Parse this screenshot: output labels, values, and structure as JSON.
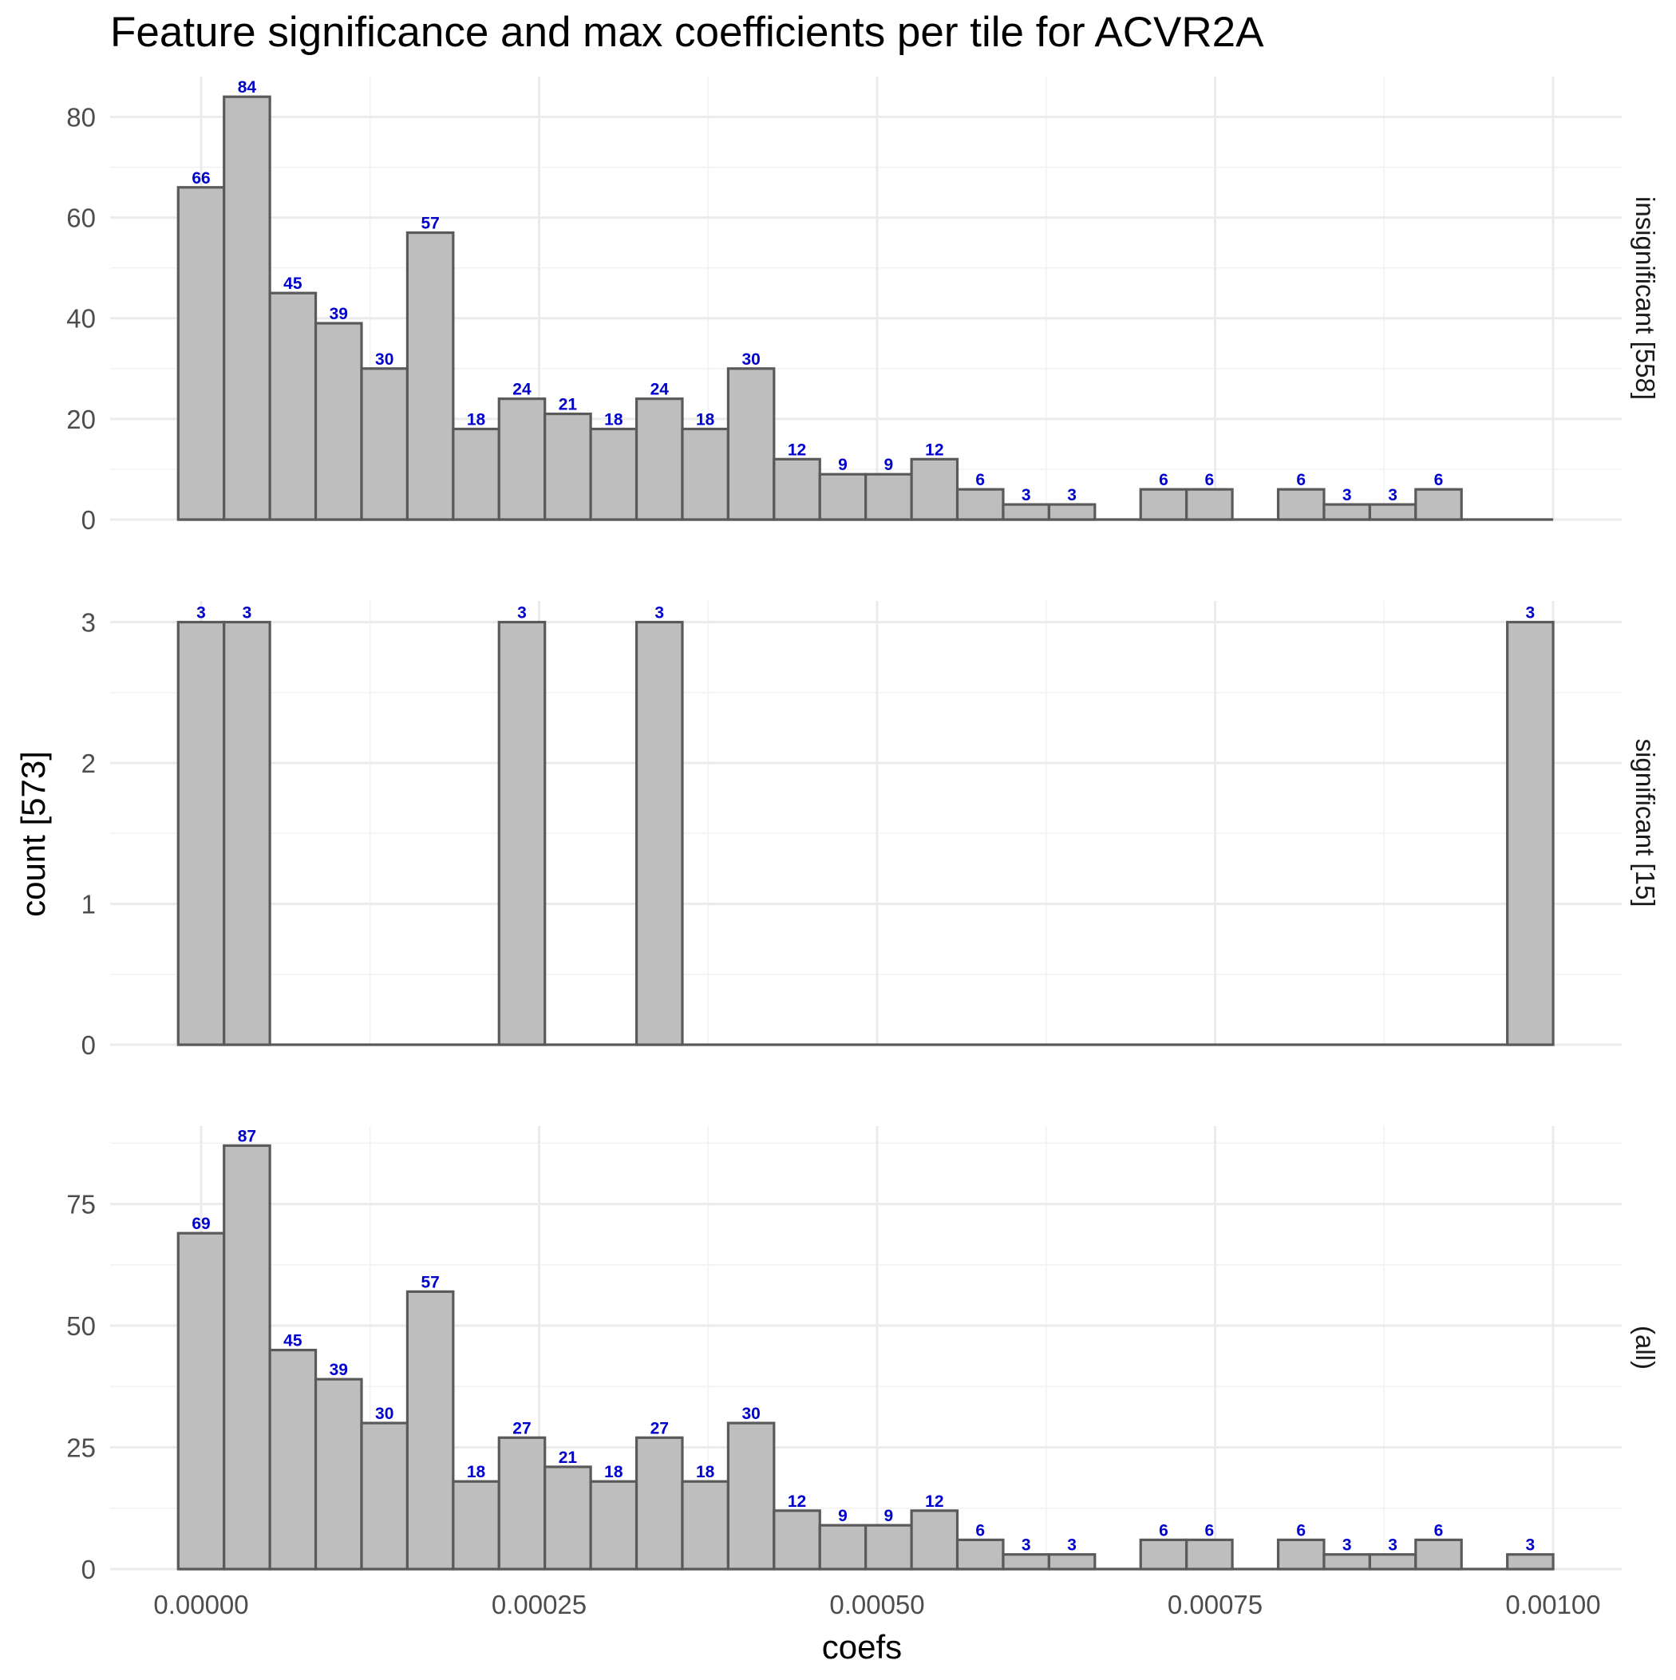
{
  "chart_data": {
    "type": "bar",
    "title": "Feature significance and max coefficients per tile for ACVR2A",
    "xlabel": "coefs",
    "ylabel": "count [573]",
    "xlim": [
      -5.36e-05,
      0.001
    ],
    "x_ticks": [
      0,
      0.00025,
      0.0005,
      0.00075,
      0.001
    ],
    "x_tick_labels": [
      "0.00000",
      "0.00025",
      "0.00050",
      "0.00075",
      "0.00100"
    ],
    "bin_width": 3.39e-05,
    "bin_centers": [
      0.0,
      3.39e-05,
      6.78e-05,
      0.0001017,
      0.0001356,
      0.0001695,
      0.0002034,
      0.0002373,
      0.0002712,
      0.0003051,
      0.000339,
      0.0003729,
      0.0004068,
      0.0004407,
      0.0004746,
      0.0005085,
      0.0005424,
      0.0005763,
      0.0006102,
      0.0006441,
      0.000678,
      0.0007119,
      0.0007458,
      0.0007797,
      0.0008136,
      0.0008475,
      0.0008814,
      0.0009153,
      0.0009492,
      0.0009831
    ],
    "grid": true,
    "bar_fill": "#bebebe",
    "bar_outline": "#5a5a5a",
    "label_color": "#0000cc",
    "panels": [
      {
        "strip": "insignificant [558]",
        "ylim": [
          0,
          88
        ],
        "y_ticks": [
          0,
          20,
          40,
          60,
          80
        ],
        "y_tick_labels": [
          "0",
          "20",
          "40",
          "60",
          "80"
        ],
        "counts": [
          66,
          84,
          45,
          39,
          30,
          57,
          18,
          24,
          21,
          18,
          24,
          18,
          30,
          12,
          9,
          9,
          12,
          6,
          3,
          3,
          0,
          6,
          6,
          0,
          6,
          3,
          3,
          6,
          0,
          0
        ]
      },
      {
        "strip": "significant [15]",
        "ylim": [
          0,
          3.15
        ],
        "y_ticks": [
          0,
          1,
          2,
          3
        ],
        "y_tick_labels": [
          "0",
          "1",
          "2",
          "3"
        ],
        "counts": [
          3,
          3,
          0,
          0,
          0,
          0,
          0,
          3,
          0,
          0,
          3,
          0,
          0,
          0,
          0,
          0,
          0,
          0,
          0,
          0,
          0,
          0,
          0,
          0,
          0,
          0,
          0,
          0,
          0,
          3
        ]
      },
      {
        "strip": "(all)",
        "ylim": [
          0,
          91
        ],
        "y_ticks": [
          0,
          25,
          50,
          75
        ],
        "y_tick_labels": [
          "0",
          "25",
          "50",
          "75"
        ],
        "counts": [
          69,
          87,
          45,
          39,
          30,
          57,
          18,
          27,
          21,
          18,
          27,
          18,
          30,
          12,
          9,
          9,
          12,
          6,
          3,
          3,
          0,
          6,
          6,
          0,
          6,
          3,
          3,
          6,
          0,
          3
        ]
      }
    ]
  }
}
